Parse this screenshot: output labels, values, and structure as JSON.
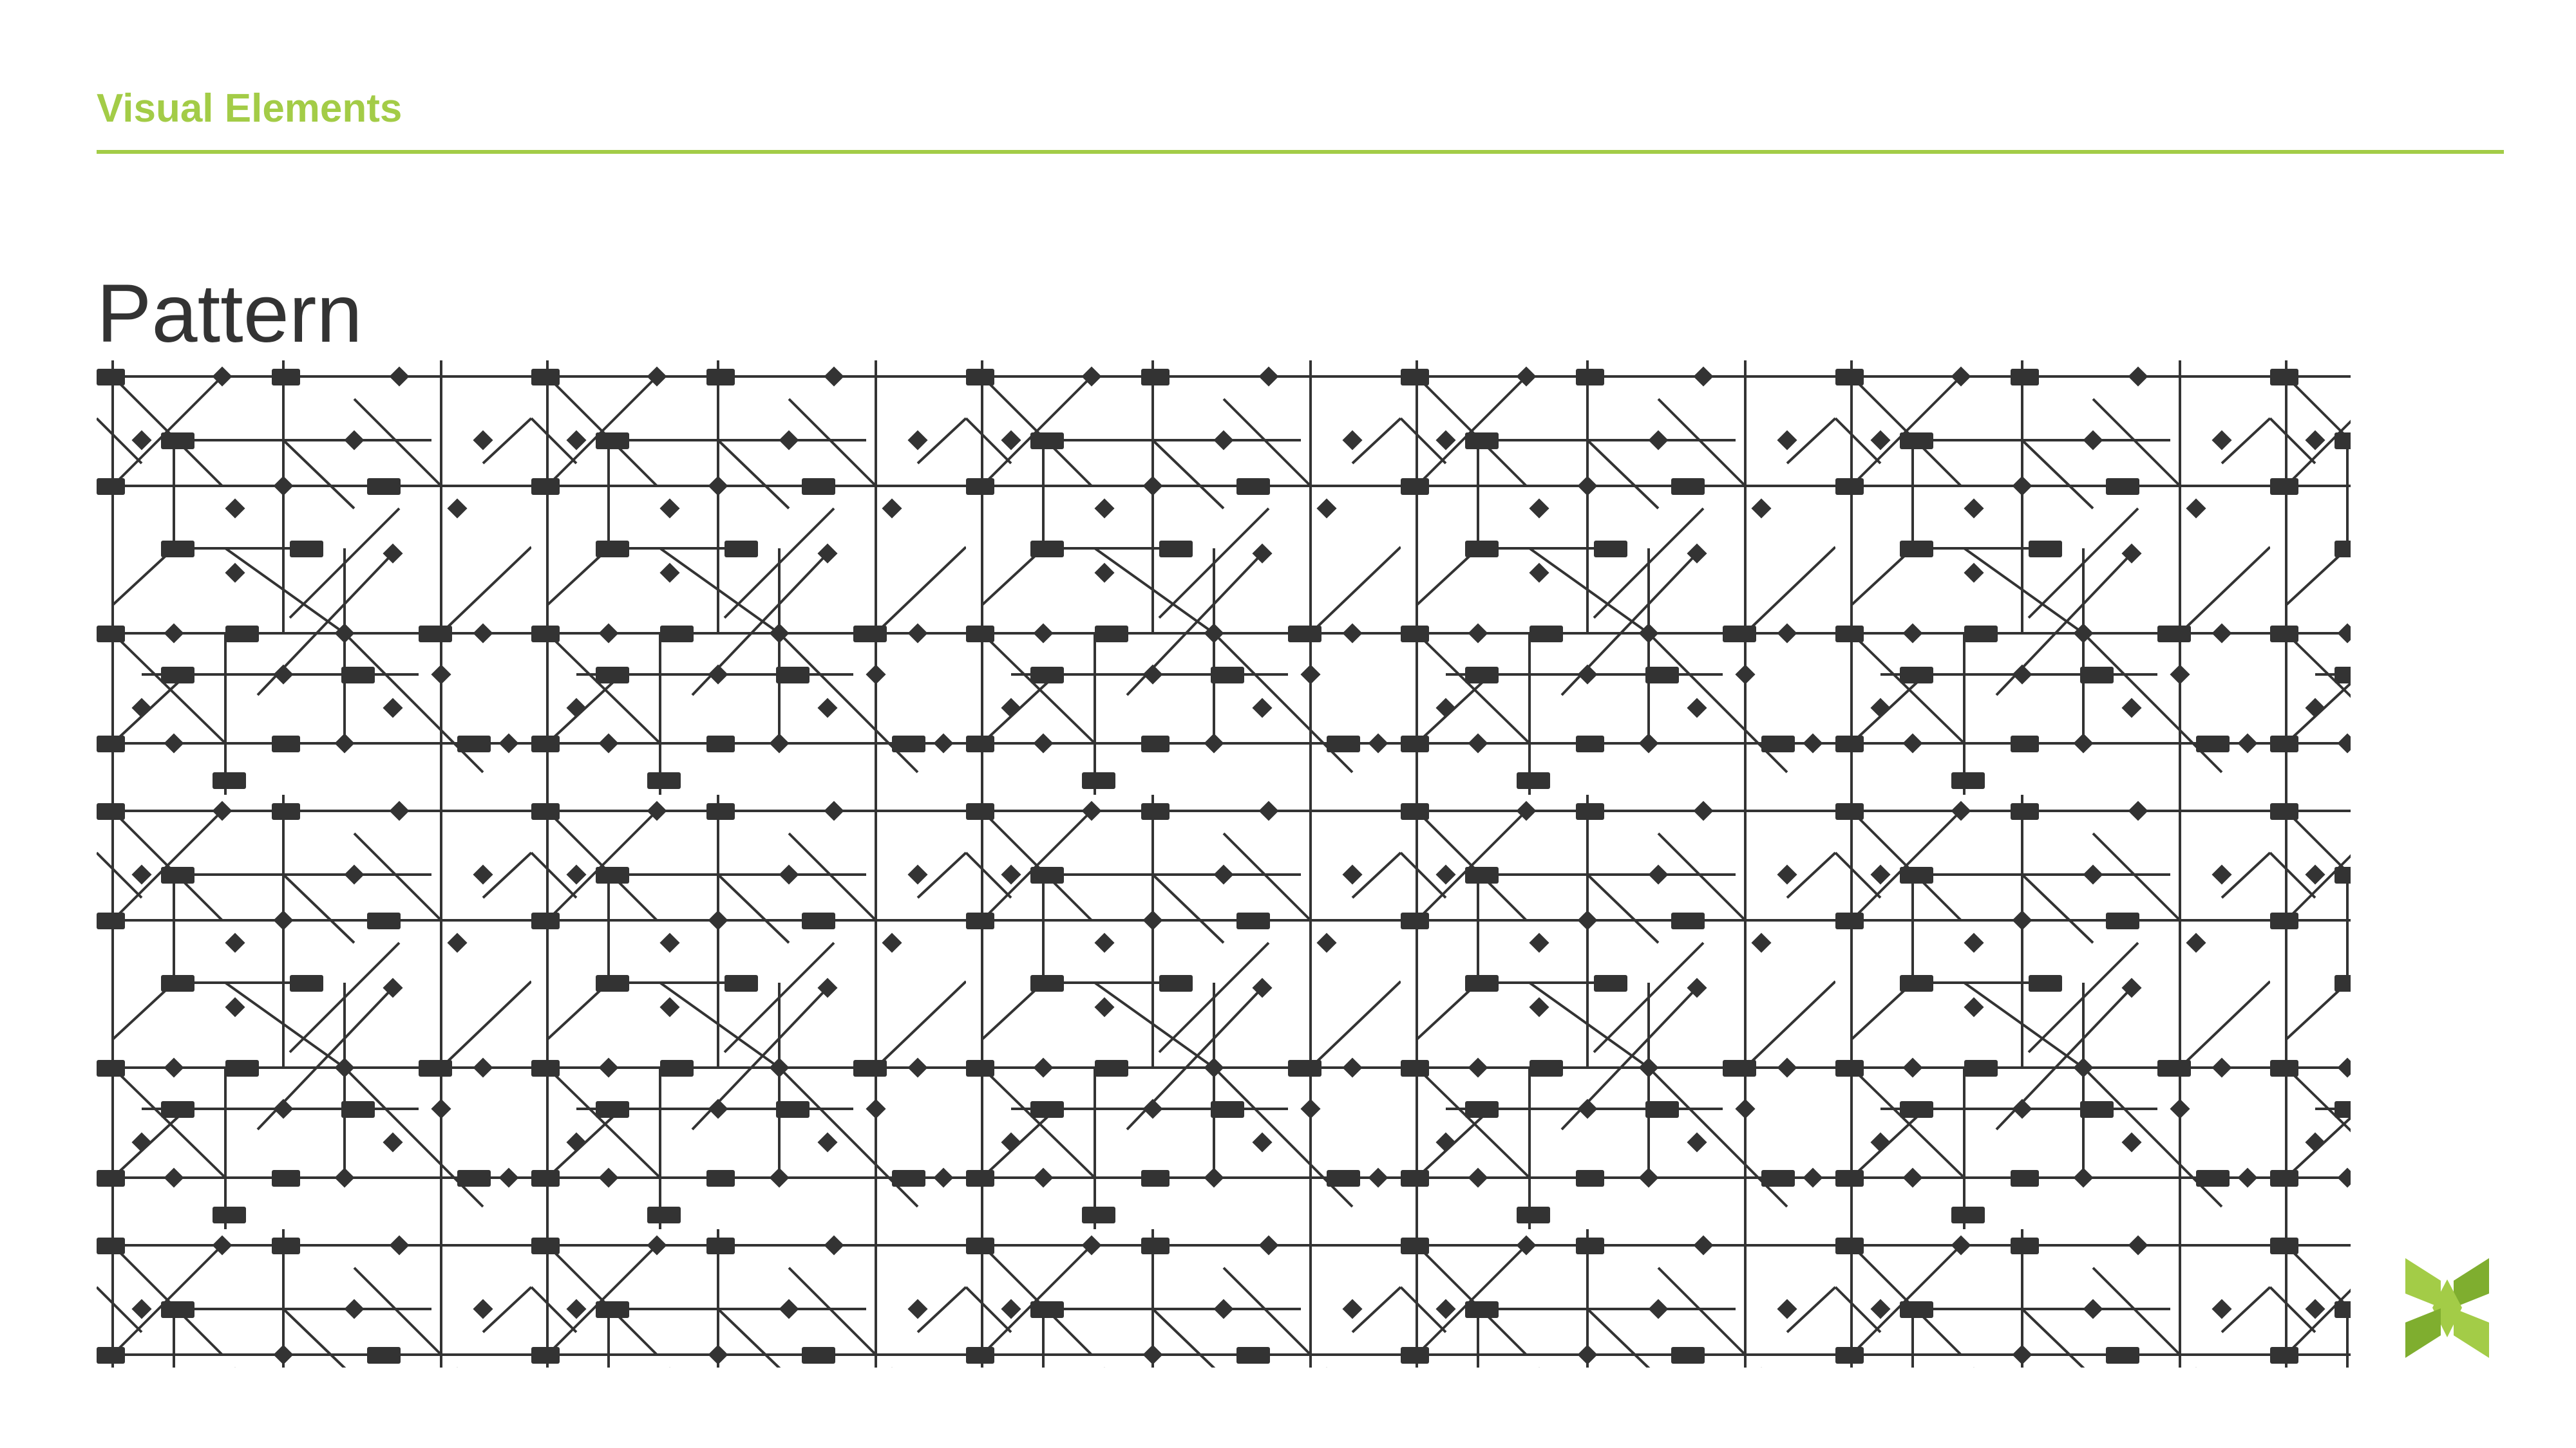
{
  "header": {
    "section_label": "Visual Elements",
    "title": "Pattern"
  },
  "colors": {
    "accent": "#a3cc47",
    "accent_dark": "#7fae2f",
    "title_text": "#333333",
    "pattern_ink": "#333333",
    "background": "#ffffff"
  },
  "pattern": {
    "icon": "circuit-node-pattern",
    "node_shapes": [
      "rectangle-node",
      "diamond-node"
    ]
  },
  "logo": {
    "icon": "green-x-logo-icon"
  }
}
